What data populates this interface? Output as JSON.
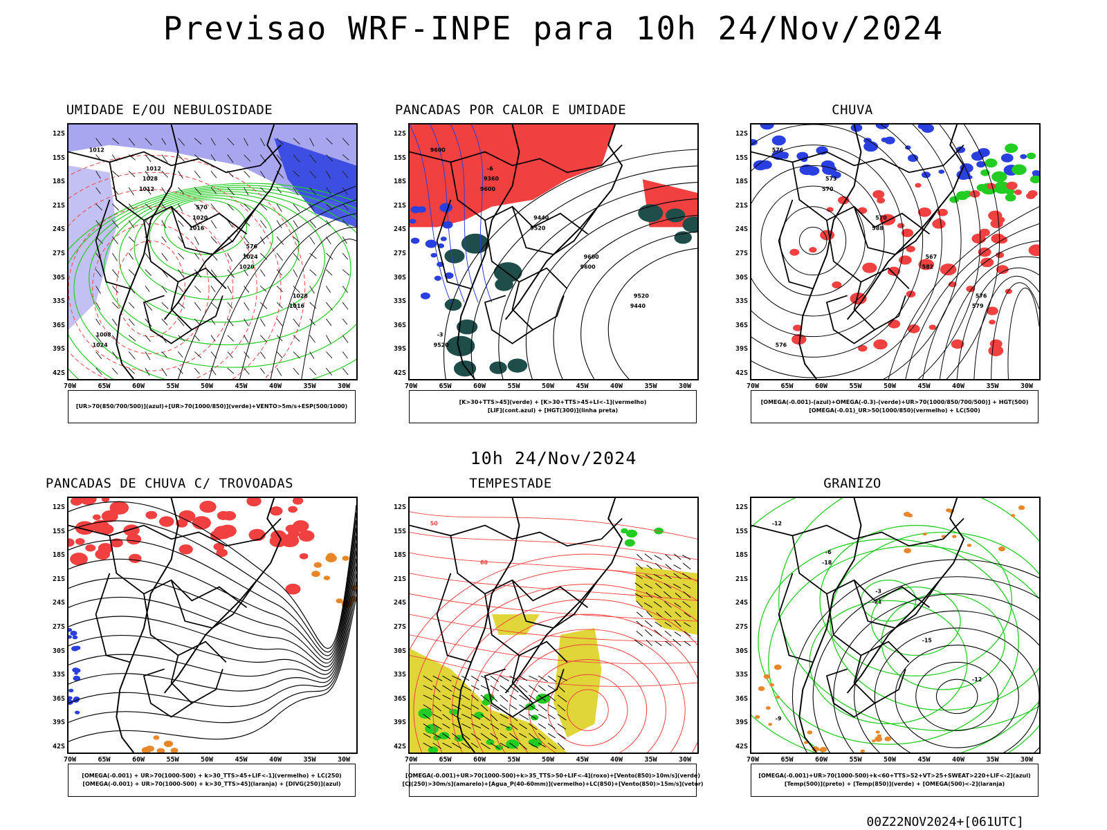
{
  "title": "Previsao WRF-INPE  para 10h 24/Nov/2024",
  "middle_label": "10h 24/Nov/2024",
  "footer": "00Z22NOV2024+[061UTC]",
  "latitude_ticks": [
    "12S",
    "15S",
    "18S",
    "21S",
    "24S",
    "27S",
    "30S",
    "33S",
    "36S",
    "39S",
    "42S"
  ],
  "longitude_ticks": [
    "70W",
    "65W",
    "60W",
    "55W",
    "50W",
    "45W",
    "40W",
    "35W",
    "30W"
  ],
  "colors": {
    "blue": "#2a3fe0",
    "lightblue": "#a9a6f0",
    "green": "#22cc22",
    "red": "#f04040",
    "darkgreen": "#1e4d4a",
    "orange": "#e8872a",
    "yellow": "#e0d63a",
    "purple": "#9b2fc8"
  },
  "panels": [
    {
      "title": "UMIDADE E/OU NEBULOSIDADE",
      "legend": [
        "[UR>70(850/700/500)](azul)+[UR>70(1000/850)](verde)+VENTO>5m/s+ESP(500/1000)"
      ],
      "contour_labels": [
        "1012",
        "1012",
        "1016",
        "1020",
        "1016",
        "1024",
        "1028",
        "1020",
        "1024",
        "1028",
        "1008",
        "1012",
        "570",
        "576"
      ]
    },
    {
      "title": "PANCADAS POR CALOR E UMIDADE",
      "legend": [
        "[K>30+TTS>45](verde) + [K>30+TTS>45+LI<-1](vermelho)",
        "[LIF](cont.azul) + [HGT(300)](linha preta)"
      ],
      "contour_labels": [
        "9600",
        "9600",
        "9520",
        "9600",
        "9440",
        "9520",
        "9360",
        "9440",
        "9600",
        "9520",
        "-3",
        "-6"
      ]
    },
    {
      "title": "CHUVA",
      "legend": [
        "[OMEGA(-0.001)-(azul)+OMEGA(-0.3)-(verde)+UR>70(1000/850/700/500)] + HGT(500)",
        "[OMEGA(-0.01)_UR>50(1000/850)(vermelho) + LC(500)"
      ],
      "contour_labels": [
        "576",
        "570",
        "588",
        "582",
        "579",
        "576",
        "573",
        "570",
        "567",
        "576"
      ]
    },
    {
      "title": "PANCADAS DE CHUVA C/ TROVOADAS",
      "legend": [
        "[OMEGA(-0.001) + UR>70(1000-500) + k>30_TTS>45+LIF<-1](vermelho) + LC(250)",
        "[OMEGA(-0.001) + UR>70(1000-500) + k>30_TTS>45](laranja) + [DIVG(250)](azul)"
      ],
      "contour_labels": []
    },
    {
      "title": "TEMPESTADE",
      "legend": [
        "[OMEGA(-0.001)+UR>70(1000-500)+k>35_TTS>50+LIF<-4](roxo)+[Vento(850)>10m/s](verde)",
        "[CJ(250)>30m/s](amarelo)+[Agua_P(40-60mm)](vermelho)+LC(850)+[Vento(850)>15m/s](vetor)"
      ],
      "contour_labels": [
        "50",
        "60"
      ]
    },
    {
      "title": "GRANIZO",
      "legend": [
        "[OMEGA(-0.001)+UR>70(1000-500)+k<60+TTS>52+VT>25+SWEAT>220+LIF<-2](azul)",
        "[Temp(500)](preto) + [Temp(850)](verde) + [OMEGA(500)<-2](laranja)"
      ],
      "contour_labels": [
        "-12",
        "-18",
        "-21",
        "-15",
        "-12",
        "-9",
        "-6",
        "-3"
      ]
    }
  ]
}
